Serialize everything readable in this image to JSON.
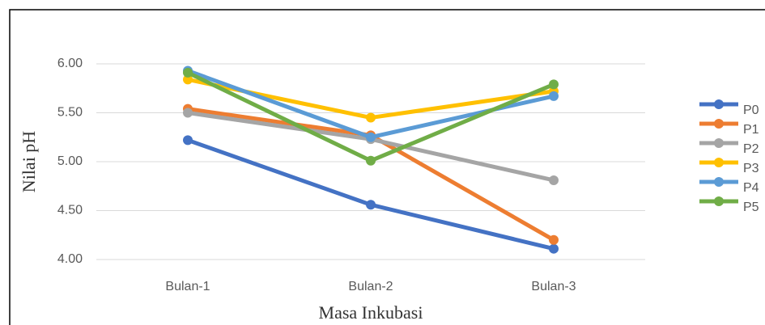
{
  "chart_data": {
    "type": "line",
    "x_label": "Masa Inkubasi",
    "y_label": "Nilai pH",
    "categories": [
      "Bulan-1",
      "Bulan-2",
      "Bulan-3"
    ],
    "series": [
      {
        "name": "P0",
        "color": "#4472c4",
        "values": [
          5.22,
          4.56,
          4.11
        ]
      },
      {
        "name": "P1",
        "color": "#ed7d31",
        "values": [
          5.54,
          5.27,
          4.2
        ]
      },
      {
        "name": "P2",
        "color": "#a5a5a5",
        "values": [
          5.5,
          5.23,
          4.81
        ]
      },
      {
        "name": "P3",
        "color": "#ffc000",
        "values": [
          5.84,
          5.45,
          5.72
        ]
      },
      {
        "name": "P4",
        "color": "#5b9bd5",
        "values": [
          5.93,
          5.25,
          5.67
        ]
      },
      {
        "name": "P5",
        "color": "#70ad47",
        "values": [
          5.91,
          5.01,
          5.79
        ]
      }
    ],
    "ylim": [
      4,
      6
    ],
    "yticks": [
      {
        "value": 4,
        "label": "4.00"
      },
      {
        "value": 4.5,
        "label": "4.50"
      },
      {
        "value": 5,
        "label": "5.00"
      },
      {
        "value": 5.5,
        "label": "5.50"
      },
      {
        "value": 6,
        "label": "6.00"
      }
    ],
    "grid": true,
    "legend": "right"
  }
}
